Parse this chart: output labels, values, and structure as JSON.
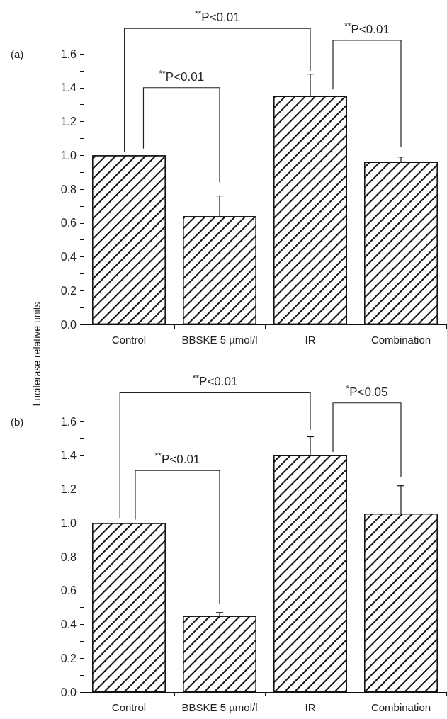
{
  "chart_data": [
    {
      "type": "bar",
      "title": "(a)",
      "ylabel": "Luciferase relative units",
      "categories": [
        "Control",
        "BBSKE 5 µmol/l",
        "IR",
        "Combination"
      ],
      "values": [
        1.0,
        0.64,
        1.35,
        0.96
      ],
      "color": "#ffffff",
      "errors": [
        null,
        [
          0.64,
          0.76
        ],
        [
          1.35,
          1.48
        ],
        [
          0.96,
          0.99
        ]
      ],
      "ylim": [
        0,
        1.6
      ],
      "yticks": [
        {
          "value": 0,
          "label": "0.0"
        },
        {
          "value": 0.1,
          "label": null
        },
        {
          "value": 0.2,
          "label": "0.2"
        },
        {
          "value": 0.3,
          "label": null
        },
        {
          "value": 0.4,
          "label": "0.4"
        },
        {
          "value": 0.5,
          "label": null
        },
        {
          "value": 0.6,
          "label": "0.6"
        },
        {
          "value": 0.7,
          "label": null
        },
        {
          "value": 0.8,
          "label": "0.8"
        },
        {
          "value": 0.9,
          "label": null
        },
        {
          "value": 1.0,
          "label": "1.0"
        },
        {
          "value": 1.1,
          "label": null
        },
        {
          "value": 1.2,
          "label": "1.2"
        },
        {
          "value": 1.3,
          "label": null
        },
        {
          "value": 1.4,
          "label": "1.4"
        },
        {
          "value": 1.5,
          "label": null
        },
        {
          "value": 1.6,
          "label": "1.6"
        }
      ],
      "grid": false,
      "annotations": [
        "$^{**}$P<0.01",
        "$^{**}$P<0.01",
        "$^{**}$P<0.01"
      ]
    },
    {
      "type": "bar",
      "title": "(b)",
      "categories": [
        "Control",
        "BBSKE 5 µmol/l",
        "IR",
        "Combination"
      ],
      "values": [
        1.0,
        0.45,
        1.4,
        1.055
      ],
      "color": "#ffffff",
      "errors": [
        null,
        [
          0.45,
          0.47
        ],
        [
          1.4,
          1.51
        ],
        [
          1.055,
          1.22
        ]
      ],
      "ylim": [
        0,
        1.6
      ],
      "yticks": [
        {
          "value": 0,
          "label": "0.0"
        },
        {
          "value": 0.1,
          "label": null
        },
        {
          "value": 0.2,
          "label": "0.2"
        },
        {
          "value": 0.3,
          "label": null
        },
        {
          "value": 0.4,
          "label": "0.4"
        },
        {
          "value": 0.5,
          "label": null
        },
        {
          "value": 0.6,
          "label": "0.6"
        },
        {
          "value": 0.7,
          "label": null
        },
        {
          "value": 0.8,
          "label": "0.8"
        },
        {
          "value": 0.9,
          "label": null
        },
        {
          "value": 1.0,
          "label": "1.0"
        },
        {
          "value": 1.1,
          "label": null
        },
        {
          "value": 1.2,
          "label": "1.2"
        },
        {
          "value": 1.3,
          "label": null
        },
        {
          "value": 1.4,
          "label": "1.4"
        },
        {
          "value": 1.5,
          "label": null
        },
        {
          "value": 1.6,
          "label": "1.6"
        }
      ],
      "grid": false,
      "annotations": [
        "$^{**}$P<0.01",
        "$^{*}$P<0.05",
        "$^{**}$P<0.01"
      ]
    }
  ]
}
